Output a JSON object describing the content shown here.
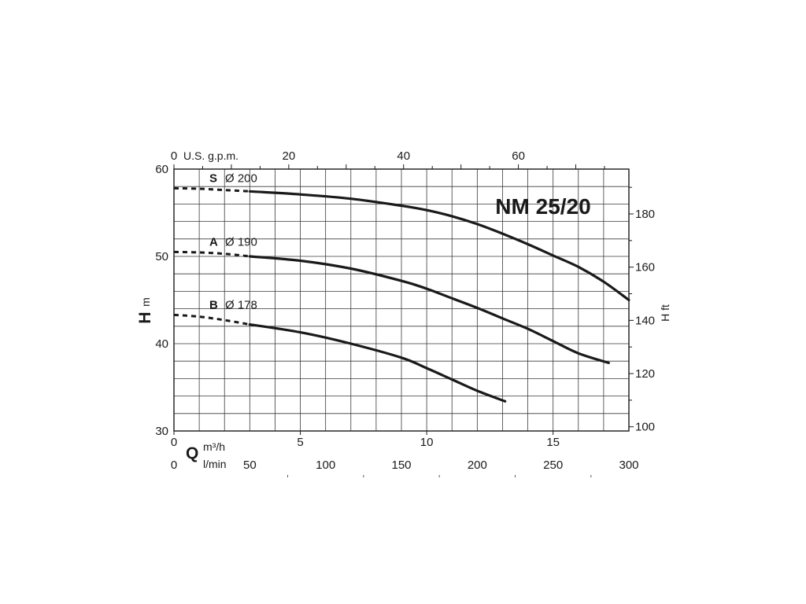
{
  "chart_data": {
    "type": "line",
    "title": "NM 25/20",
    "x_axis": {
      "symbol": "Q",
      "unit": "m³/h",
      "range": [
        0,
        18
      ],
      "ticks": [
        0,
        5,
        10,
        15
      ]
    },
    "x_axis_lmin": {
      "unit": "l/min",
      "range": [
        0,
        300
      ],
      "ticks": [
        0,
        50,
        100,
        150,
        200,
        250,
        300
      ]
    },
    "x_axis_top": {
      "unit": "U.S. g.p.m.",
      "ticks": [
        0,
        20,
        40,
        60
      ]
    },
    "y_axis": {
      "symbol": "H",
      "unit": "m",
      "range": [
        30,
        60
      ],
      "ticks": [
        30,
        40,
        50,
        60
      ]
    },
    "y_axis_right": {
      "label": "H ft",
      "ticks": [
        100,
        120,
        140,
        160,
        180
      ]
    },
    "grid": true,
    "series": [
      {
        "letter": "S",
        "name": "Ø 200",
        "dashed_x": [
          0,
          1,
          2,
          3
        ],
        "dashed_y": [
          57.8,
          57.75,
          57.6,
          57.45
        ],
        "x": [
          3,
          5,
          7,
          9,
          10,
          11,
          12,
          13,
          14,
          15,
          16,
          17,
          18
        ],
        "y": [
          57.45,
          57.1,
          56.6,
          55.8,
          55.3,
          54.6,
          53.7,
          52.6,
          51.4,
          50.1,
          48.8,
          47.1,
          45.0
        ]
      },
      {
        "letter": "A",
        "name": "Ø 190",
        "dashed_x": [
          0,
          1,
          2,
          3
        ],
        "dashed_y": [
          50.5,
          50.45,
          50.3,
          50.0
        ],
        "x": [
          3,
          5,
          7,
          9,
          10,
          11,
          12,
          13,
          14,
          15,
          16,
          17.2
        ],
        "y": [
          50.0,
          49.5,
          48.6,
          47.2,
          46.3,
          45.2,
          44.1,
          42.9,
          41.7,
          40.3,
          38.9,
          37.8
        ]
      },
      {
        "letter": "B",
        "name": "Ø 178",
        "dashed_x": [
          0,
          1,
          2,
          3
        ],
        "dashed_y": [
          43.3,
          43.1,
          42.7,
          42.2
        ],
        "x": [
          3,
          5,
          7,
          9,
          10,
          11,
          12,
          13.1
        ],
        "y": [
          42.2,
          41.3,
          40.0,
          38.4,
          37.2,
          35.9,
          34.6,
          33.4
        ]
      }
    ]
  }
}
